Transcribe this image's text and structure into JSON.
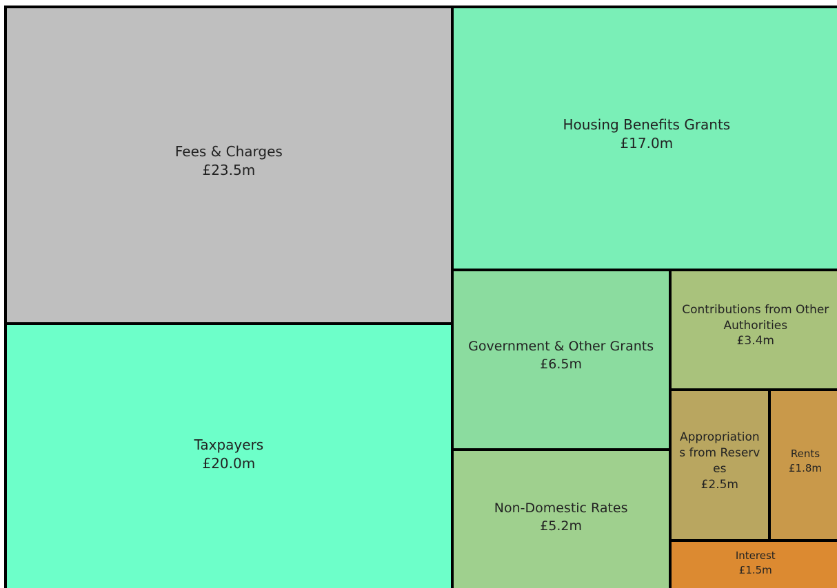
{
  "chart_data": {
    "type": "treemap",
    "categories": [
      "Fees & Charges",
      "Taxpayers",
      "Housing Benefits Grants",
      "Government & Other Grants",
      "Non-Domestic Rates",
      "Contributions from Other Authorities",
      "Appropriations from Reserves",
      "Rents",
      "Interest"
    ],
    "values": [
      23.5,
      20.0,
      17.0,
      6.5,
      5.2,
      3.4,
      2.5,
      1.8,
      1.5
    ],
    "value_labels": [
      "£23.5m",
      "£20.0m",
      "£17.0m",
      "£6.5m",
      "£5.2m",
      "£3.4m",
      "£2.5m",
      "£1.8m",
      "£1.5m"
    ],
    "colors": [
      "#bfbfbf",
      "#6dffc9",
      "#7aefb7",
      "#8bdc9f",
      "#9fd08e",
      "#a9c27c",
      "#b9a660",
      "#c9994a",
      "#dc8a31"
    ]
  }
}
